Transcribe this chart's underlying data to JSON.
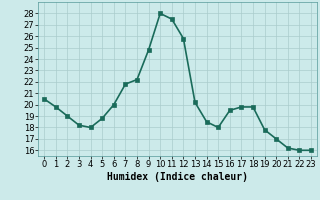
{
  "x": [
    0,
    1,
    2,
    3,
    4,
    5,
    6,
    7,
    8,
    9,
    10,
    11,
    12,
    13,
    14,
    15,
    16,
    17,
    18,
    19,
    20,
    21,
    22,
    23
  ],
  "y": [
    20.5,
    19.8,
    19.0,
    18.2,
    18.0,
    18.8,
    20.0,
    21.8,
    22.2,
    24.8,
    28.0,
    27.5,
    25.8,
    20.2,
    18.5,
    18.0,
    19.5,
    19.8,
    19.8,
    17.8,
    17.0,
    16.2,
    16.0,
    16.0
  ],
  "xlabel": "Humidex (Indice chaleur)",
  "ylim": [
    15.5,
    29
  ],
  "xlim": [
    -0.5,
    23.5
  ],
  "yticks": [
    16,
    17,
    18,
    19,
    20,
    21,
    22,
    23,
    24,
    25,
    26,
    27,
    28
  ],
  "xticks": [
    0,
    1,
    2,
    3,
    4,
    5,
    6,
    7,
    8,
    9,
    10,
    11,
    12,
    13,
    14,
    15,
    16,
    17,
    18,
    19,
    20,
    21,
    22,
    23
  ],
  "line_color": "#1a6b5a",
  "marker_color": "#1a6b5a",
  "bg_color": "#cceaea",
  "grid_color": "#aacccc",
  "xlabel_fontsize": 7,
  "tick_fontsize": 6,
  "linewidth": 1.2,
  "markersize": 2.5
}
